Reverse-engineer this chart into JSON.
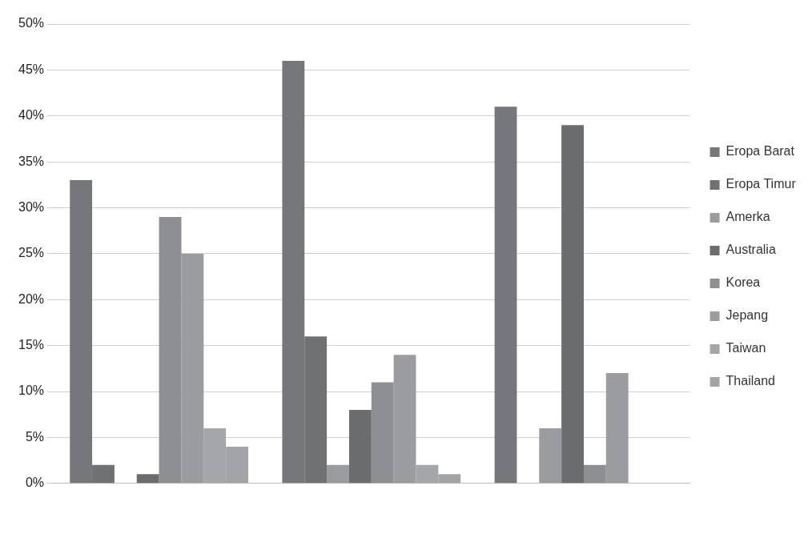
{
  "chart_data": {
    "type": "bar",
    "categories": [
      null,
      null,
      null
    ],
    "series": [
      {
        "name": "Eropa Barat",
        "color": "#76777b",
        "values": [
          33,
          46,
          41
        ]
      },
      {
        "name": "Eropa Timur",
        "color": "#707173",
        "values": [
          2,
          16,
          0
        ]
      },
      {
        "name": "Amerka",
        "color": "#9a9b9e",
        "values": [
          0,
          2,
          6
        ]
      },
      {
        "name": "Australia",
        "color": "#6b6c6e",
        "values": [
          1,
          8,
          39
        ]
      },
      {
        "name": "Korea",
        "color": "#8e8f93",
        "values": [
          29,
          11,
          2
        ]
      },
      {
        "name": "Jepang",
        "color": "#9b9ca0",
        "values": [
          25,
          14,
          12
        ]
      },
      {
        "name": "Taiwan",
        "color": "#a5a6a9",
        "values": [
          6,
          2,
          0
        ]
      },
      {
        "name": "Thailand",
        "color": "#a3a4a7",
        "values": [
          4,
          1,
          0
        ]
      }
    ],
    "ylim": [
      0,
      50
    ],
    "yticks": [
      {
        "value": 0,
        "label": "0%"
      },
      {
        "value": 5,
        "label": "5%"
      },
      {
        "value": 10,
        "label": "10%"
      },
      {
        "value": 15,
        "label": "15%"
      },
      {
        "value": 20,
        "label": "20%"
      },
      {
        "value": 25,
        "label": "25%"
      },
      {
        "value": 30,
        "label": "30%"
      },
      {
        "value": 35,
        "label": "35%"
      },
      {
        "value": 40,
        "label": "40%"
      },
      {
        "value": 45,
        "label": "45%"
      },
      {
        "value": 50,
        "label": "50%"
      }
    ],
    "grid": "y",
    "legend": "right"
  }
}
